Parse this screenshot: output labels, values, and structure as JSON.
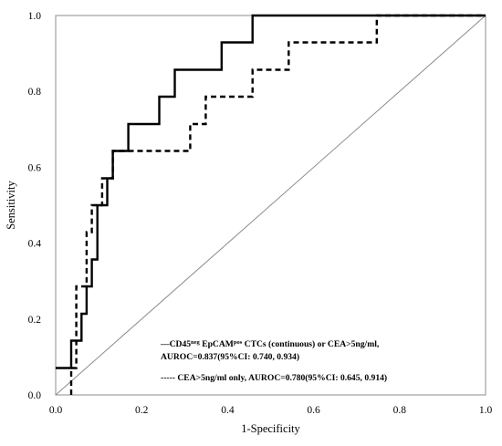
{
  "chart_data": {
    "type": "line",
    "xlabel": "1-Specificity",
    "ylabel": "Sensitivity",
    "xlim": [
      0,
      1
    ],
    "ylim": [
      0,
      1
    ],
    "x_ticks": [
      "0.0",
      "0.2",
      "0.4",
      "0.6",
      "0.8",
      "1.0"
    ],
    "y_ticks": [
      "0.0",
      "0.2",
      "0.4",
      "0.6",
      "0.8",
      "1.0"
    ],
    "grid": false,
    "legend_position": "bottom-right",
    "reference_line": [
      [
        0,
        0
      ],
      [
        1,
        1
      ]
    ],
    "series": [
      {
        "style": "solid",
        "legend_line1_prefix": "—CD45",
        "legend_line1_sup1": "neg",
        "legend_line1_mid": " EpCAM",
        "legend_line1_sup2": "pos",
        "legend_line1_suffix": " CTCs (continuous) or CEA>5ng/ml,",
        "legend_line2": "AUROC=0.837(95%CI: 0.740, 0.934)",
        "points": [
          [
            0,
            0.071
          ],
          [
            0.036,
            0.071
          ],
          [
            0.036,
            0.143
          ],
          [
            0.06,
            0.143
          ],
          [
            0.06,
            0.214
          ],
          [
            0.072,
            0.214
          ],
          [
            0.072,
            0.286
          ],
          [
            0.084,
            0.286
          ],
          [
            0.084,
            0.357
          ],
          [
            0.097,
            0.357
          ],
          [
            0.097,
            0.5
          ],
          [
            0.12,
            0.5
          ],
          [
            0.12,
            0.571
          ],
          [
            0.133,
            0.571
          ],
          [
            0.133,
            0.643
          ],
          [
            0.169,
            0.643
          ],
          [
            0.169,
            0.714
          ],
          [
            0.241,
            0.714
          ],
          [
            0.241,
            0.786
          ],
          [
            0.277,
            0.786
          ],
          [
            0.277,
            0.857
          ],
          [
            0.325,
            0.857
          ],
          [
            0.325,
            0.857
          ],
          [
            0.386,
            0.857
          ],
          [
            0.386,
            0.929
          ],
          [
            0.458,
            0.929
          ],
          [
            0.458,
            1.0
          ],
          [
            1.0,
            1.0
          ]
        ]
      },
      {
        "style": "dashed",
        "legend_line1": "----- CEA>5ng/ml only, AUROC=0.780(95%CI: 0.645, 0.914)",
        "points": [
          [
            0.036,
            0
          ],
          [
            0.036,
            0.071
          ],
          [
            0.048,
            0.071
          ],
          [
            0.048,
            0.286
          ],
          [
            0.072,
            0.286
          ],
          [
            0.072,
            0.429
          ],
          [
            0.084,
            0.429
          ],
          [
            0.084,
            0.5
          ],
          [
            0.108,
            0.5
          ],
          [
            0.108,
            0.571
          ],
          [
            0.133,
            0.571
          ],
          [
            0.133,
            0.643
          ],
          [
            0.313,
            0.643
          ],
          [
            0.313,
            0.714
          ],
          [
            0.349,
            0.714
          ],
          [
            0.349,
            0.786
          ],
          [
            0.458,
            0.786
          ],
          [
            0.458,
            0.857
          ],
          [
            0.542,
            0.857
          ],
          [
            0.542,
            0.929
          ],
          [
            0.747,
            0.929
          ],
          [
            0.747,
            1.0
          ],
          [
            1.0,
            1.0
          ]
        ]
      }
    ]
  }
}
